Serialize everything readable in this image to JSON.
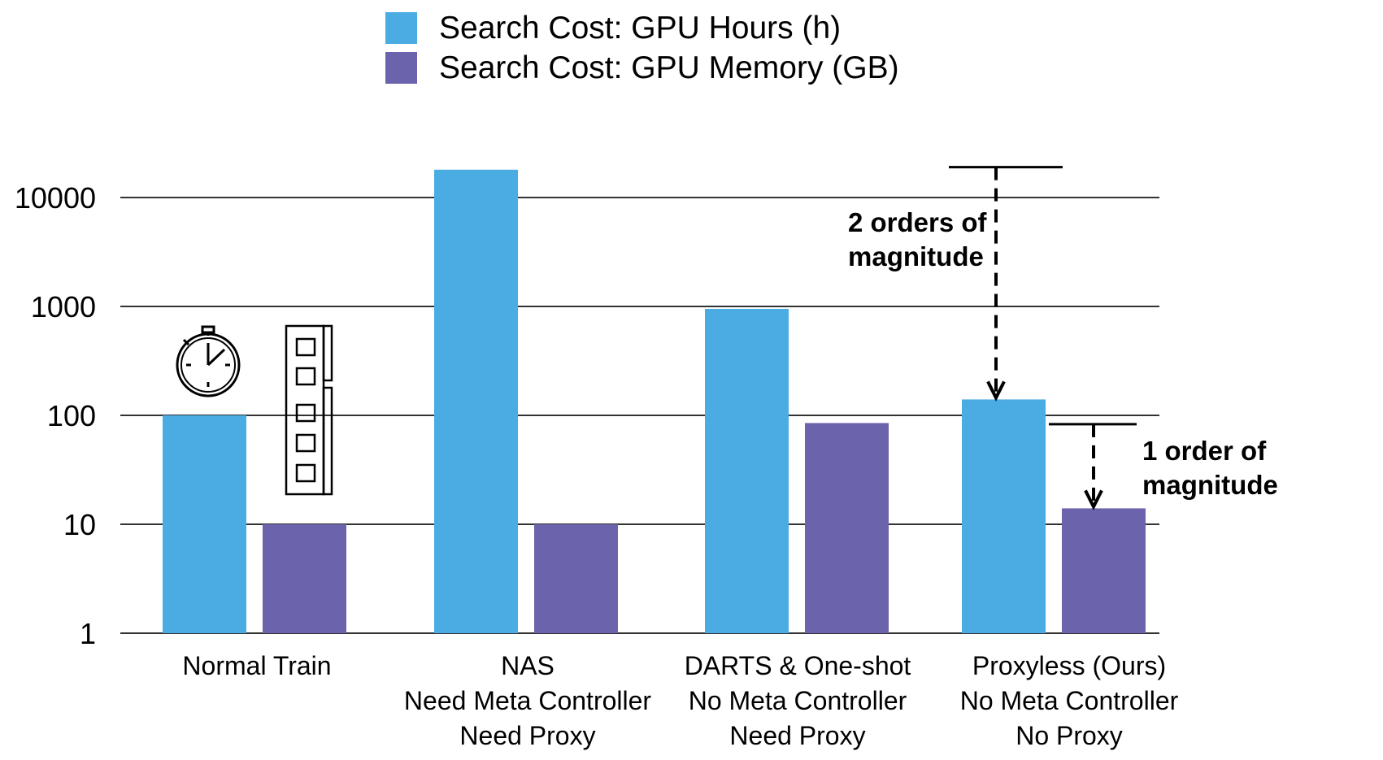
{
  "chart_data": {
    "type": "bar",
    "title": "",
    "xlabel": "",
    "ylabel": "",
    "yscale": "log",
    "ylim": [
      1,
      20000
    ],
    "yticks": [
      "1",
      "10",
      "100",
      "1000",
      "10000"
    ],
    "grid": true,
    "legend_position": "top-center",
    "categories": [
      [
        "Normal Train"
      ],
      [
        "NAS",
        "Need Meta Controller",
        "Need Proxy"
      ],
      [
        "DARTS & One-shot",
        "No Meta Controller",
        "Need Proxy"
      ],
      [
        "Proxyless (Ours)",
        "No Meta Controller",
        "No Proxy"
      ]
    ],
    "series": [
      {
        "name": "Search Cost: GPU Hours (h)",
        "color": "#4aace3",
        "values": [
          100,
          18000,
          950,
          140
        ]
      },
      {
        "name": "Search Cost: GPU Memory (GB)",
        "color": "#6b63ab",
        "values": [
          10,
          10,
          85,
          14
        ]
      }
    ],
    "annotations": [
      {
        "text": [
          "2 orders of",
          "magnitude"
        ],
        "from": 19000,
        "to": 140
      },
      {
        "text": [
          "1 order of",
          "magnitude"
        ],
        "from": 83,
        "to": 14
      }
    ],
    "icons": [
      "stopwatch-icon",
      "memory-module-icon"
    ]
  }
}
